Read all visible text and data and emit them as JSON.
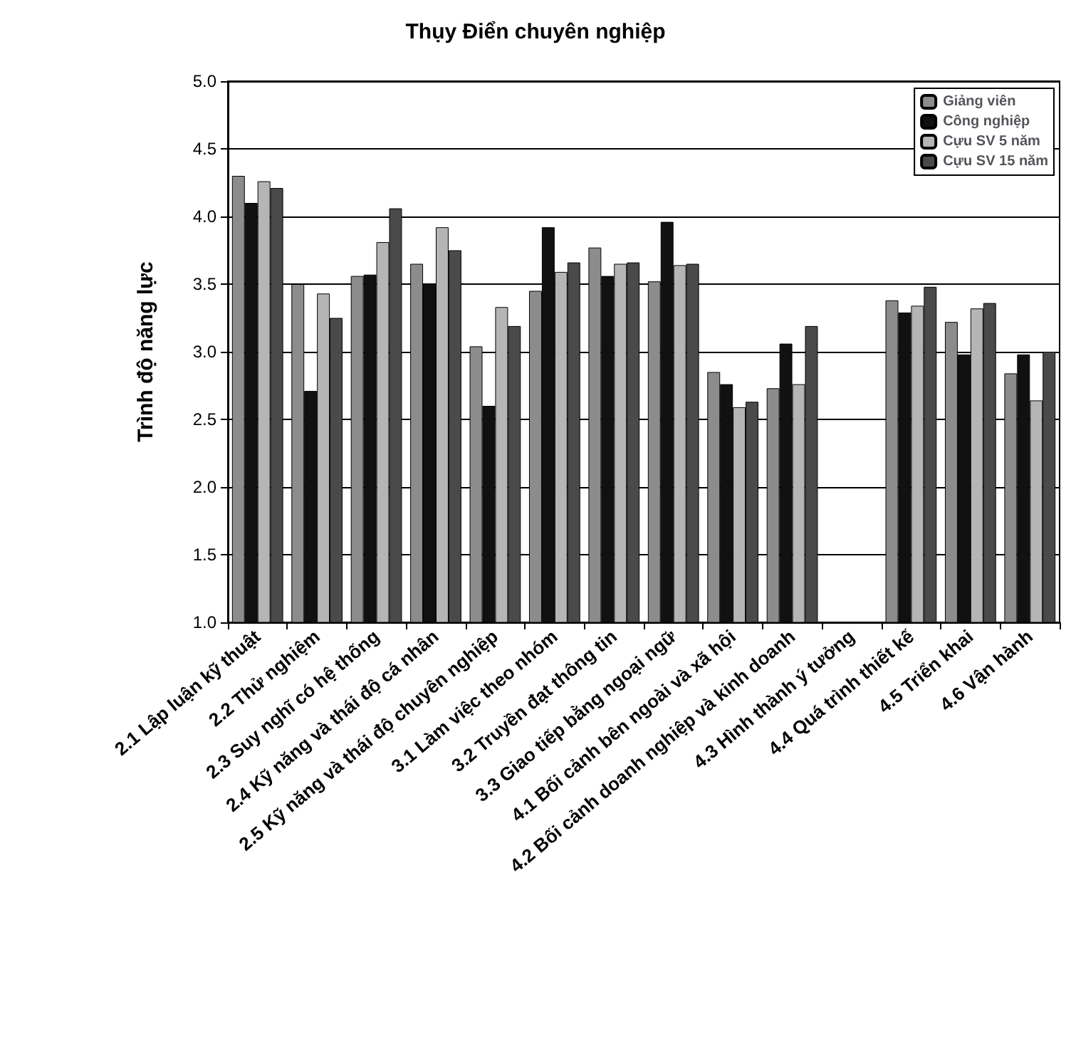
{
  "chart_data": {
    "type": "bar",
    "title": "Thụy Điển chuyên nghiệp",
    "ylabel": "Trình độ năng lực",
    "categories": [
      "2.1 Lập luận kỹ thuật",
      "2.2 Thử nghiệm",
      "2.3 Suy nghĩ có hệ thống",
      "2.4 Kỹ năng và thái độ cá nhân",
      "2.5 Kỹ năng và thái độ chuyên nghiệp",
      "3.1 Làm việc theo nhóm",
      "3.2 Truyền đạt thông tin",
      "3.3 Giao tiếp bằng ngoại ngữ",
      "4.1 Bối cảnh bên ngoài và xã hội",
      "4.2 Bối cảnh doanh nghiệp và kinh doanh",
      "4.3 Hình thành ý tưởng",
      "4.4 Quá trình thiết kế",
      "4.5 Triển khai",
      "4.6 Vận hành"
    ],
    "series": [
      {
        "name": "Giảng viên",
        "color": "#8c8c8c",
        "values": [
          4.3,
          3.5,
          3.56,
          3.65,
          3.04,
          3.45,
          3.77,
          3.52,
          2.85,
          2.73,
          null,
          3.38,
          3.22,
          2.84
        ]
      },
      {
        "name": "Công nghiệp",
        "color": "#111111",
        "values": [
          4.1,
          2.71,
          3.57,
          3.5,
          2.6,
          3.92,
          3.56,
          3.96,
          2.76,
          3.06,
          null,
          3.29,
          2.98,
          2.98
        ]
      },
      {
        "name": "Cựu SV 5 năm",
        "color": "#b5b5b5",
        "values": [
          4.26,
          3.43,
          3.81,
          3.92,
          3.33,
          3.59,
          3.65,
          3.64,
          2.59,
          2.76,
          null,
          3.34,
          3.32,
          2.64
        ]
      },
      {
        "name": "Cựu SV 15 năm",
        "color": "#4a4a4a",
        "values": [
          4.21,
          3.25,
          4.06,
          3.75,
          3.19,
          3.66,
          3.66,
          3.65,
          2.63,
          3.19,
          null,
          3.48,
          3.36,
          3.0
        ]
      }
    ],
    "ylim": [
      1.0,
      5.0
    ],
    "yticks": [
      {
        "value": 1,
        "label": "1.0"
      },
      {
        "value": 1.5,
        "label": "1.5"
      },
      {
        "value": 2,
        "label": "2.0"
      },
      {
        "value": 2.5,
        "label": "2.5"
      },
      {
        "value": 3,
        "label": "3.0"
      },
      {
        "value": 3.5,
        "label": "3.5"
      },
      {
        "value": 4,
        "label": "4.0"
      },
      {
        "value": 4.5,
        "label": "4.5"
      },
      {
        "value": 5,
        "label": "5.0"
      }
    ],
    "grid": "y",
    "legend": "top right"
  }
}
